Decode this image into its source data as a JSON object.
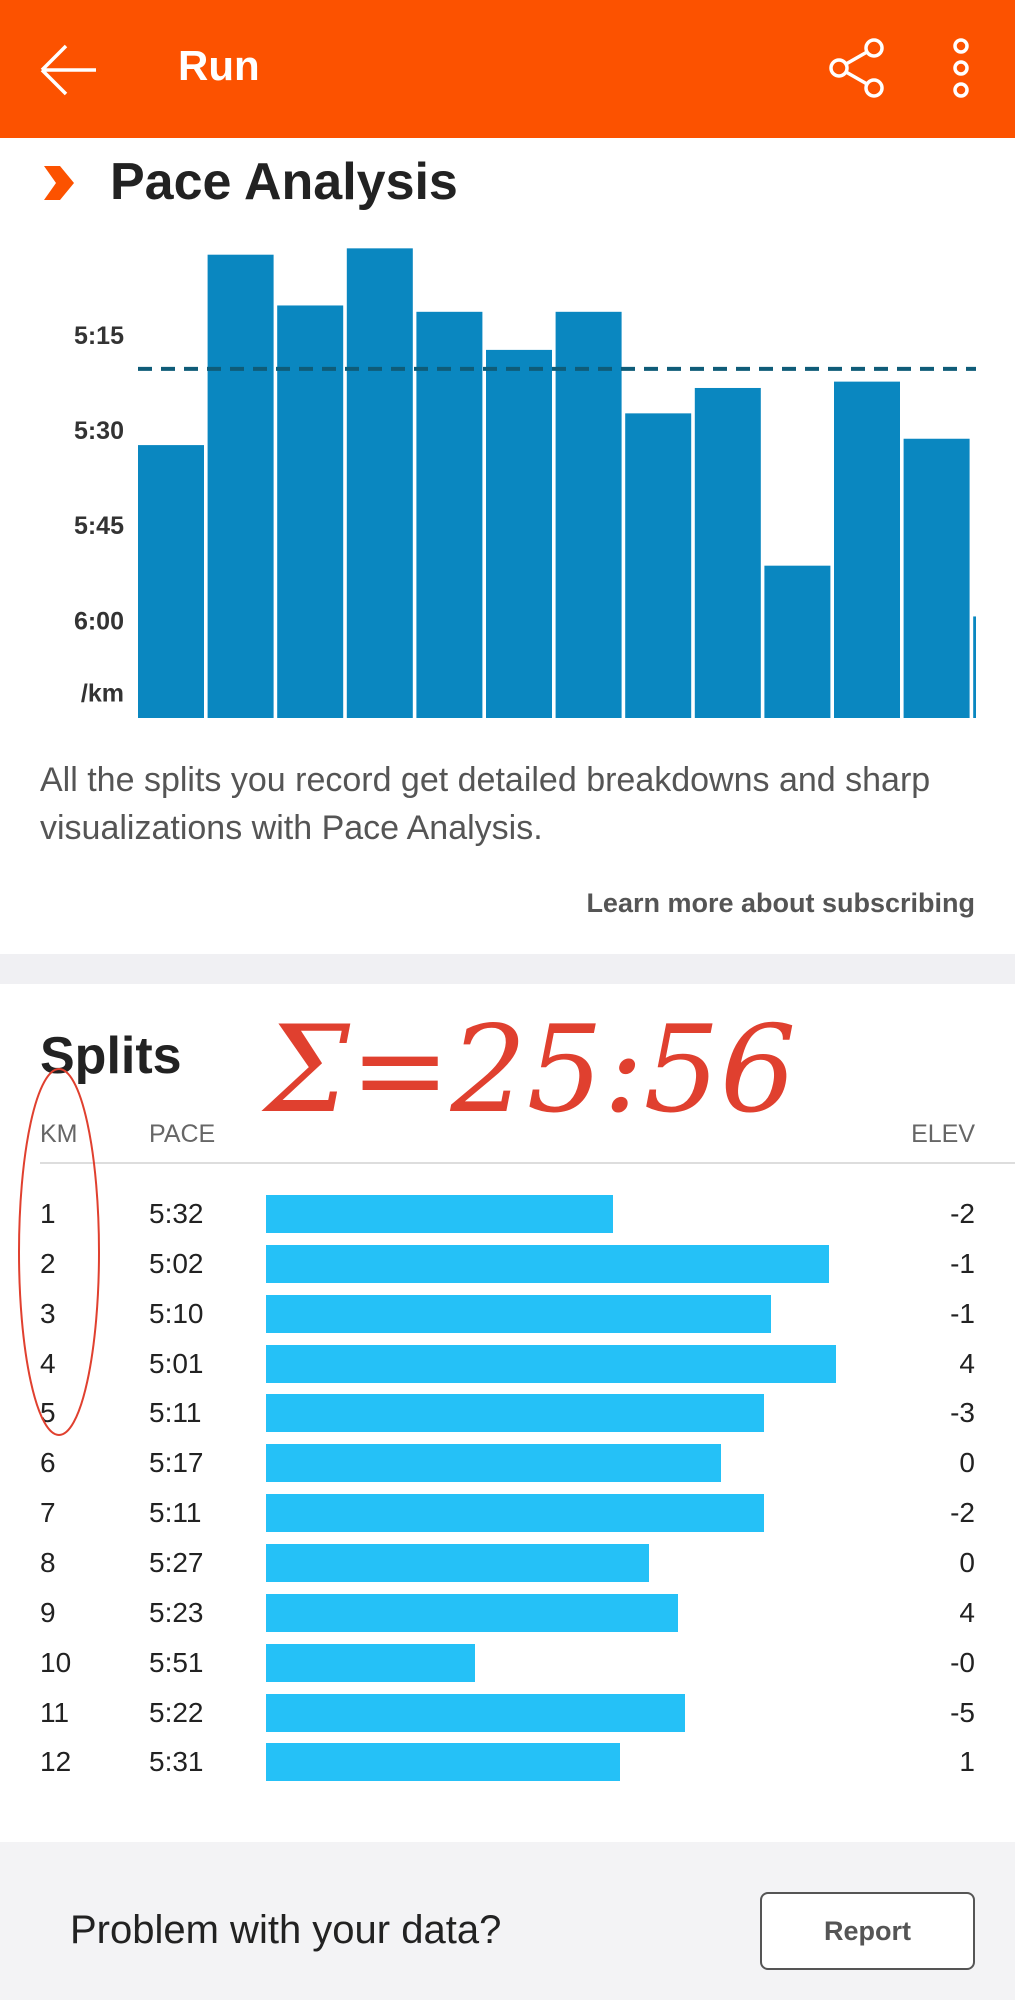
{
  "header": {
    "title": "Run"
  },
  "pace_analysis": {
    "title": "Pace Analysis",
    "description": "All the splits you record get detailed breakdowns and sharp visualizations with Pace Analysis.",
    "link": "Learn more about subscribing"
  },
  "chart_data": {
    "type": "bar",
    "y_label": "/km",
    "values": [
      332,
      302,
      310,
      301,
      311,
      317,
      311,
      327,
      323,
      351,
      322,
      331,
      359
    ],
    "average": 320,
    "color": "#0a87c0",
    "average_color": "#0f5c78",
    "ylim": [
      300,
      375
    ],
    "y_inverted": true,
    "yticks": [
      {
        "value": 315,
        "label": "5:15"
      },
      {
        "value": 330,
        "label": "5:30"
      },
      {
        "value": 345,
        "label": "5:45"
      },
      {
        "value": 360,
        "label": "6:00"
      }
    ]
  },
  "splits": {
    "title": "Splits",
    "columns": [
      "KM",
      "PACE",
      "ELEV"
    ],
    "bar_color": "#25c1f7",
    "rows": [
      [
        1,
        "5:32",
        "-2"
      ],
      [
        2,
        "5:02",
        "-1"
      ],
      [
        3,
        "5:10",
        "-1"
      ],
      [
        4,
        "5:01",
        "4"
      ],
      [
        5,
        "5:11",
        "-3"
      ],
      [
        6,
        "5:17",
        "0"
      ],
      [
        7,
        "5:11",
        "-2"
      ],
      [
        8,
        "5:27",
        "0"
      ],
      [
        9,
        "5:23",
        "4"
      ],
      [
        10,
        "5:51",
        "-0"
      ],
      [
        11,
        "5:22",
        "-5"
      ],
      [
        12,
        "5:31",
        "1"
      ]
    ]
  },
  "annotation": "Σ=25:56",
  "footer": {
    "text": "Problem with your data?",
    "button": "Report"
  }
}
